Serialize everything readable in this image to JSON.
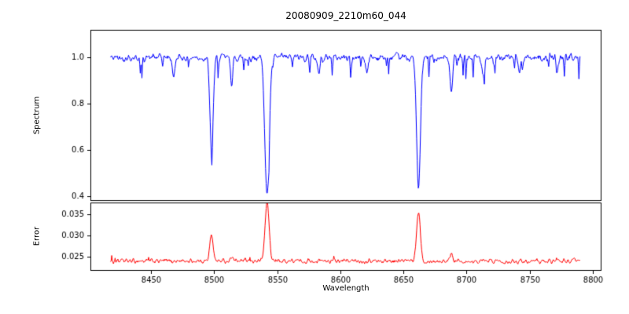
{
  "figure": {
    "title": "20080909_2210m60_044",
    "xlabel": "Wavelength",
    "background": "#ffffff",
    "axis_color": "#000000"
  },
  "chart_data": {
    "type": "line",
    "title": "20080909_2210m60_044",
    "xlabel": "Wavelength",
    "xlim": [
      8402,
      8807
    ],
    "xticks": [
      8450,
      8500,
      8550,
      8600,
      8650,
      8700,
      8750,
      8800
    ],
    "x_data_range": [
      8418,
      8790
    ],
    "grid": false,
    "legend": "none",
    "panels": [
      {
        "name": "spectrum",
        "ylabel": "Spectrum",
        "color": "#0000ff",
        "ylim": [
          0.38,
          1.12
        ],
        "yticks": [
          0.4,
          0.6,
          0.8,
          1.0
        ],
        "ytick_labels": [
          "0.4",
          "0.6",
          "0.8",
          "1.0"
        ],
        "continuum": 1.0,
        "noise_amplitude": 0.012,
        "absorption_lines": [
          {
            "center": 8498,
            "depth": 0.41,
            "sigma": 1.3
          },
          {
            "center": 8542,
            "depth": 0.6,
            "sigma": 1.7
          },
          {
            "center": 8662,
            "depth": 0.57,
            "sigma": 1.5
          },
          {
            "center": 8468,
            "depth": 0.09,
            "sigma": 0.9
          },
          {
            "center": 8514,
            "depth": 0.11,
            "sigma": 0.9
          },
          {
            "center": 8583,
            "depth": 0.07,
            "sigma": 0.9
          },
          {
            "center": 8621,
            "depth": 0.06,
            "sigma": 0.9
          },
          {
            "center": 8688,
            "depth": 0.16,
            "sigma": 1.0
          },
          {
            "center": 8713,
            "depth": 0.06,
            "sigma": 0.9
          },
          {
            "center": 8742,
            "depth": 0.07,
            "sigma": 0.9
          },
          {
            "center": 8772,
            "depth": 0.06,
            "sigma": 0.9
          }
        ]
      },
      {
        "name": "error",
        "ylabel": "Error",
        "color": "#ff0000",
        "ylim": [
          0.0217,
          0.0377
        ],
        "yticks": [
          0.025,
          0.03,
          0.035
        ],
        "ytick_labels": [
          "0.025",
          "0.030",
          "0.035"
        ],
        "baseline": 0.024,
        "noise_amplitude": 0.0004,
        "peaks": [
          {
            "center": 8498,
            "height": 0.0063,
            "sigma": 1.3
          },
          {
            "center": 8542,
            "height": 0.0138,
            "sigma": 1.6
          },
          {
            "center": 8662,
            "height": 0.0117,
            "sigma": 1.5
          },
          {
            "center": 8514,
            "height": 0.0012,
            "sigma": 0.9
          },
          {
            "center": 8688,
            "height": 0.0022,
            "sigma": 1.0
          }
        ]
      }
    ]
  }
}
